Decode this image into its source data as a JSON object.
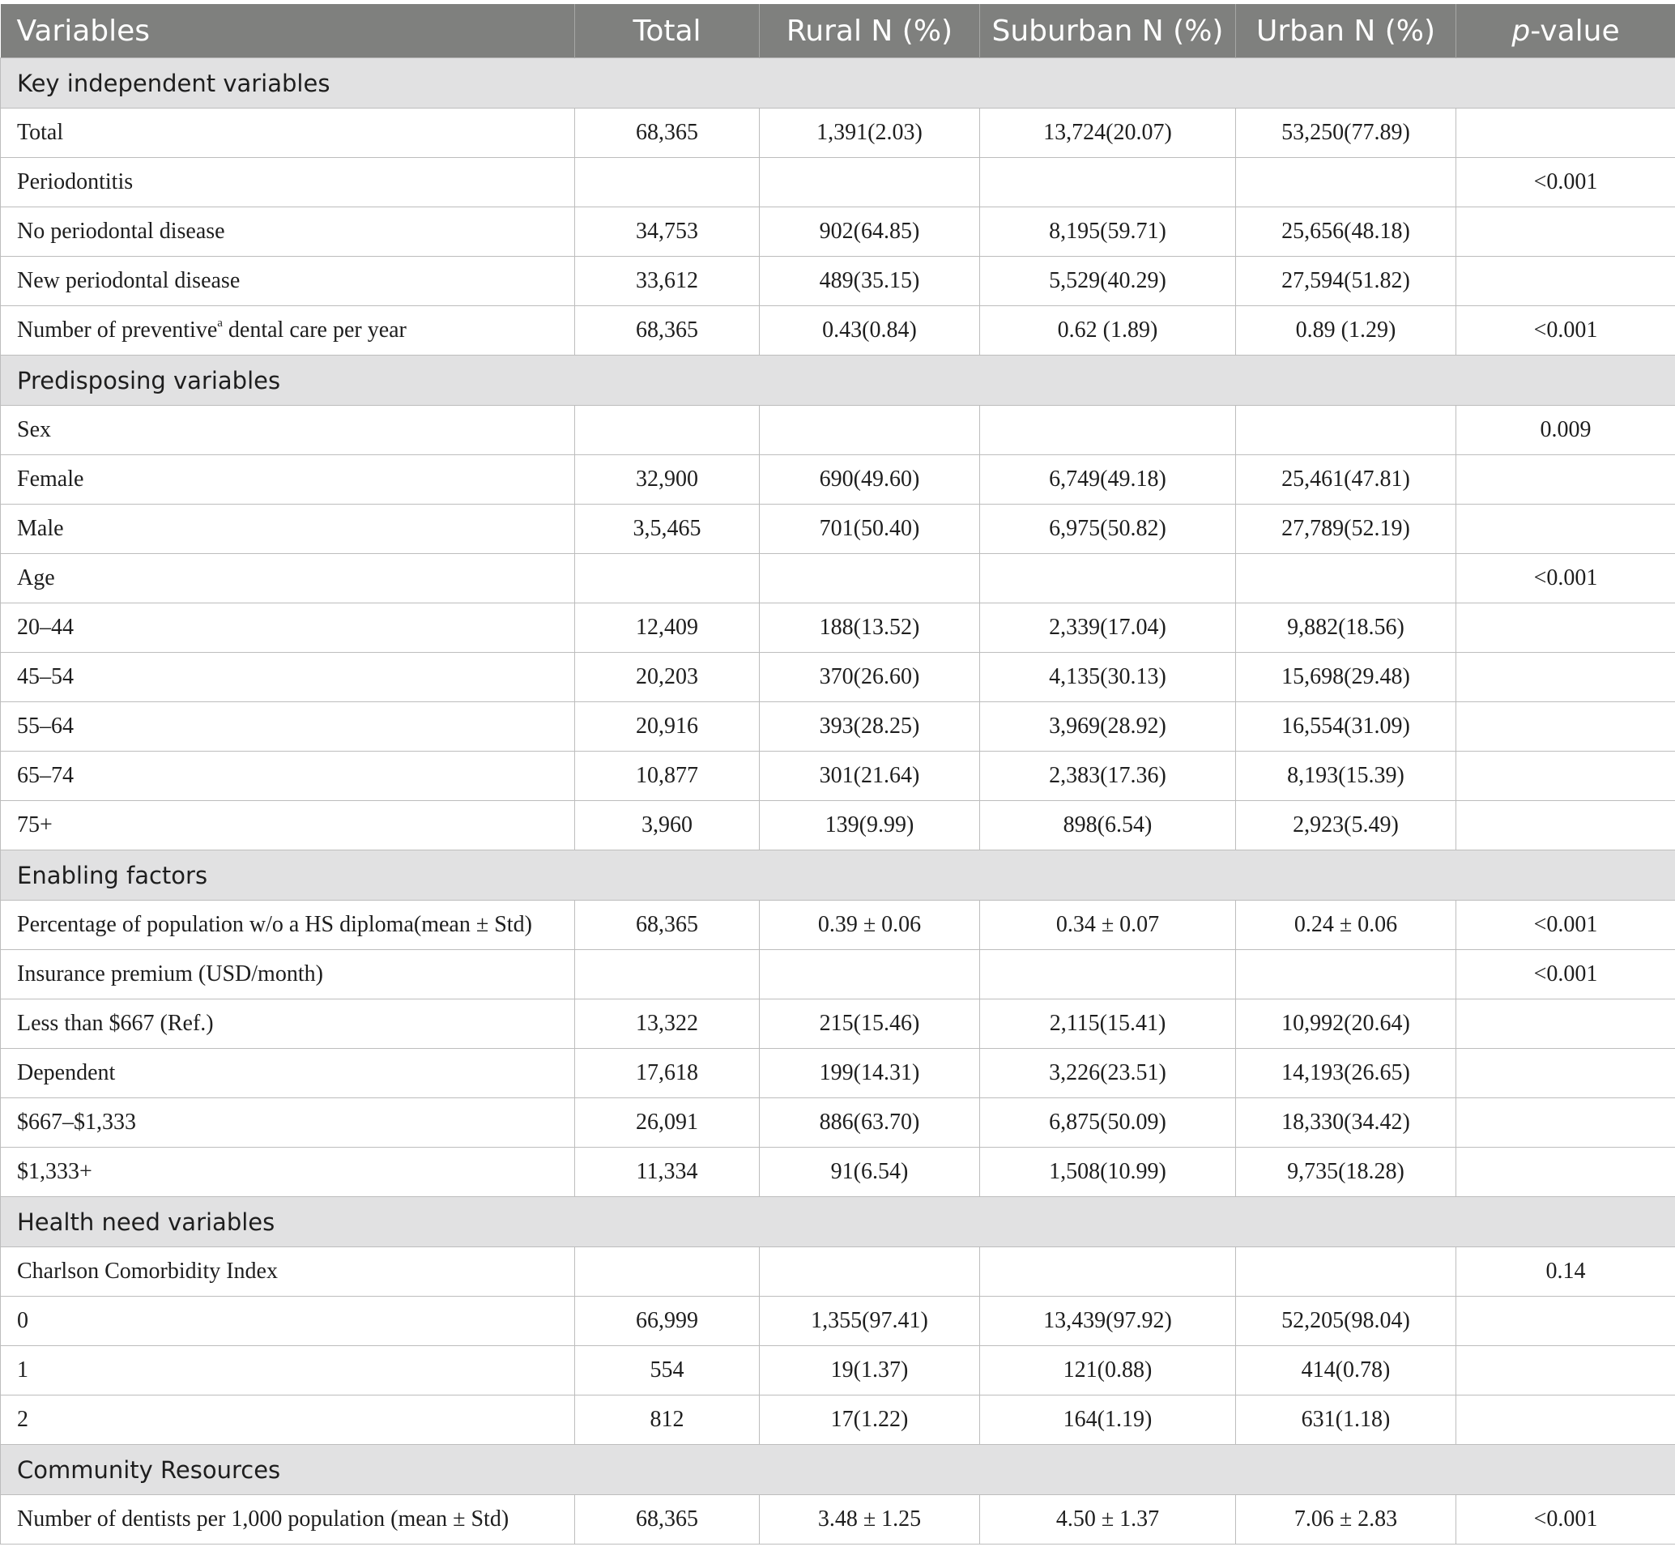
{
  "header": {
    "variables": "Variables",
    "total": "Total",
    "rural": "Rural N (%)",
    "suburban": "Suburban N (%)",
    "urban": "Urban N (%)",
    "p_italic": "p",
    "p_rest": "-value"
  },
  "sections": [
    {
      "title": "Key independent variables",
      "rows": [
        {
          "label": "Total",
          "total": "68,365",
          "rural": "1,391(2.03)",
          "suburban": "13,724(20.07)",
          "urban": "53,250(77.89)",
          "p": ""
        },
        {
          "label": "Periodontitis",
          "total": "",
          "rural": "",
          "suburban": "",
          "urban": "",
          "p": "<0.001"
        },
        {
          "label": "No periodontal disease",
          "total": "34,753",
          "rural": "902(64.85)",
          "suburban": "8,195(59.71)",
          "urban": "25,656(48.18)",
          "p": ""
        },
        {
          "label": "New periodontal disease",
          "total": "33,612",
          "rural": "489(35.15)",
          "suburban": "5,529(40.29)",
          "urban": "27,594(51.82)",
          "p": ""
        },
        {
          "label_pre": "Number of preventive",
          "label_sup": "a",
          "label_post": " dental care per year",
          "total": "68,365",
          "rural": "0.43(0.84)",
          "suburban": "0.62 (1.89)",
          "urban": "0.89 (1.29)",
          "p": "<0.001"
        }
      ]
    },
    {
      "title": "Predisposing variables",
      "rows": [
        {
          "label": "Sex",
          "total": "",
          "rural": "",
          "suburban": "",
          "urban": "",
          "p": "0.009"
        },
        {
          "label": "Female",
          "total": "32,900",
          "rural": "690(49.60)",
          "suburban": "6,749(49.18)",
          "urban": "25,461(47.81)",
          "p": ""
        },
        {
          "label": "Male",
          "total": "3,5,465",
          "rural": "701(50.40)",
          "suburban": "6,975(50.82)",
          "urban": "27,789(52.19)",
          "p": ""
        },
        {
          "label": "Age",
          "total": "",
          "rural": "",
          "suburban": "",
          "urban": "",
          "p": "<0.001"
        },
        {
          "label": "20–44",
          "total": "12,409",
          "rural": "188(13.52)",
          "suburban": "2,339(17.04)",
          "urban": "9,882(18.56)",
          "p": ""
        },
        {
          "label": "45–54",
          "total": "20,203",
          "rural": "370(26.60)",
          "suburban": "4,135(30.13)",
          "urban": "15,698(29.48)",
          "p": ""
        },
        {
          "label": "55–64",
          "total": "20,916",
          "rural": "393(28.25)",
          "suburban": "3,969(28.92)",
          "urban": "16,554(31.09)",
          "p": ""
        },
        {
          "label": "65–74",
          "total": "10,877",
          "rural": "301(21.64)",
          "suburban": "2,383(17.36)",
          "urban": "8,193(15.39)",
          "p": ""
        },
        {
          "label": "75+",
          "total": "3,960",
          "rural": "139(9.99)",
          "suburban": "898(6.54)",
          "urban": "2,923(5.49)",
          "p": ""
        }
      ]
    },
    {
      "title": "Enabling factors",
      "rows": [
        {
          "label": "Percentage of population w/o a HS diploma(mean ± Std)",
          "total": "68,365",
          "rural": "0.39 ± 0.06",
          "suburban": "0.34 ± 0.07",
          "urban": "0.24 ± 0.06",
          "p": "<0.001"
        },
        {
          "label": "Insurance premium (USD/month)",
          "total": "",
          "rural": "",
          "suburban": "",
          "urban": "",
          "p": "<0.001"
        },
        {
          "label": "Less than $667 (Ref.)",
          "total": "13,322",
          "rural": "215(15.46)",
          "suburban": "2,115(15.41)",
          "urban": "10,992(20.64)",
          "p": ""
        },
        {
          "label": "Dependent",
          "total": "17,618",
          "rural": "199(14.31)",
          "suburban": "3,226(23.51)",
          "urban": "14,193(26.65)",
          "p": ""
        },
        {
          "label": "$667–$1,333",
          "total": "26,091",
          "rural": "886(63.70)",
          "suburban": "6,875(50.09)",
          "urban": "18,330(34.42)",
          "p": ""
        },
        {
          "label": "$1,333+",
          "total": "11,334",
          "rural": "91(6.54)",
          "suburban": "1,508(10.99)",
          "urban": "9,735(18.28)",
          "p": ""
        }
      ]
    },
    {
      "title": "Health need variables",
      "rows": [
        {
          "label": "Charlson Comorbidity Index",
          "total": "",
          "rural": "",
          "suburban": "",
          "urban": "",
          "p": "0.14"
        },
        {
          "label": "0",
          "total": "66,999",
          "rural": "1,355(97.41)",
          "suburban": "13,439(97.92)",
          "urban": "52,205(98.04)",
          "p": ""
        },
        {
          "label": "1",
          "total": "554",
          "rural": "19(1.37)",
          "suburban": "121(0.88)",
          "urban": "414(0.78)",
          "p": ""
        },
        {
          "label": "2",
          "total": "812",
          "rural": "17(1.22)",
          "suburban": "164(1.19)",
          "urban": "631(1.18)",
          "p": ""
        }
      ]
    },
    {
      "title": "Community Resources",
      "rows": [
        {
          "label": "Number of dentists per 1,000 population (mean ± Std)",
          "total": "68,365",
          "rural": "3.48 ± 1.25",
          "suburban": "4.50 ± 1.37",
          "urban": "7.06 ± 2.83",
          "p": "<0.001"
        }
      ]
    }
  ]
}
